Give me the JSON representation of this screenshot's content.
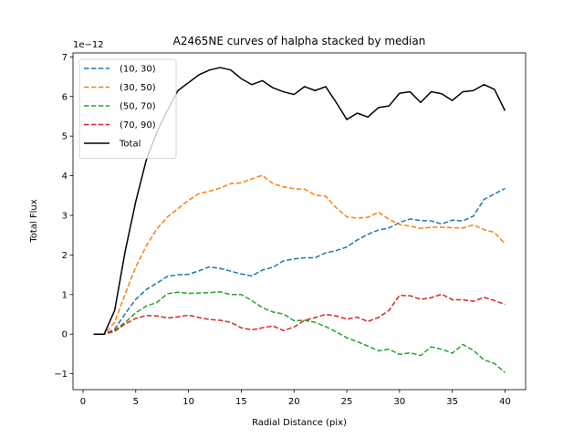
{
  "chart_data": {
    "type": "line",
    "title": "A2465NE curves of halpha stacked by median",
    "xlabel": "Radial Distance (pix)",
    "ylabel": "Total Flux",
    "offset_label": "1e−12",
    "xlim": [
      -0.95,
      41.95
    ],
    "ylim": [
      -1.4,
      7.1
    ],
    "xticks": [
      0,
      5,
      10,
      15,
      20,
      25,
      30,
      35,
      40
    ],
    "yticks": [
      -1,
      0,
      1,
      2,
      3,
      4,
      5,
      6,
      7
    ],
    "xtick_labels": [
      "0",
      "5",
      "10",
      "15",
      "20",
      "25",
      "30",
      "35",
      "40"
    ],
    "ytick_labels": [
      "−1",
      "0",
      "1",
      "2",
      "3",
      "4",
      "5",
      "6",
      "7"
    ],
    "legend_position": "top-left",
    "x": [
      1,
      2,
      3,
      4,
      5,
      6,
      7,
      8,
      9,
      10,
      11,
      12,
      13,
      14,
      15,
      16,
      17,
      18,
      19,
      20,
      21,
      22,
      23,
      24,
      25,
      26,
      27,
      28,
      29,
      30,
      31,
      32,
      33,
      34,
      35,
      36,
      37,
      38,
      39,
      40
    ],
    "series": [
      {
        "name": "(10, 30)",
        "color": "#1f77b4",
        "dash": true,
        "values": [
          0.0,
          0.0,
          0.13,
          0.52,
          0.88,
          1.13,
          1.29,
          1.46,
          1.5,
          1.51,
          1.6,
          1.7,
          1.66,
          1.59,
          1.52,
          1.47,
          1.62,
          1.69,
          1.85,
          1.9,
          1.93,
          1.93,
          2.05,
          2.11,
          2.2,
          2.38,
          2.52,
          2.63,
          2.68,
          2.82,
          2.91,
          2.87,
          2.86,
          2.78,
          2.88,
          2.86,
          2.98,
          3.4,
          3.54,
          3.68
        ]
      },
      {
        "name": "(30, 50)",
        "color": "#ff7f0e",
        "dash": true,
        "values": [
          0.0,
          0.0,
          0.3,
          1.02,
          1.7,
          2.23,
          2.66,
          2.96,
          3.17,
          3.38,
          3.55,
          3.61,
          3.69,
          3.8,
          3.82,
          3.92,
          4.01,
          3.8,
          3.72,
          3.67,
          3.66,
          3.51,
          3.48,
          3.19,
          2.96,
          2.93,
          2.95,
          3.08,
          2.9,
          2.77,
          2.73,
          2.67,
          2.7,
          2.7,
          2.69,
          2.68,
          2.76,
          2.64,
          2.57,
          2.28
        ]
      },
      {
        "name": "(50, 70)",
        "color": "#2ca02c",
        "dash": true,
        "values": [
          0.0,
          0.0,
          0.1,
          0.3,
          0.54,
          0.71,
          0.8,
          1.02,
          1.06,
          1.03,
          1.04,
          1.05,
          1.07,
          1.0,
          1.0,
          0.85,
          0.67,
          0.56,
          0.51,
          0.34,
          0.35,
          0.3,
          0.19,
          0.06,
          -0.09,
          -0.19,
          -0.3,
          -0.42,
          -0.38,
          -0.51,
          -0.47,
          -0.54,
          -0.32,
          -0.38,
          -0.48,
          -0.26,
          -0.41,
          -0.65,
          -0.74,
          -0.97
        ]
      },
      {
        "name": "(70, 90)",
        "color": "#d62728",
        "dash": true,
        "values": [
          0.0,
          0.0,
          0.07,
          0.26,
          0.4,
          0.47,
          0.46,
          0.41,
          0.44,
          0.48,
          0.42,
          0.37,
          0.35,
          0.3,
          0.16,
          0.11,
          0.16,
          0.21,
          0.09,
          0.18,
          0.35,
          0.42,
          0.5,
          0.46,
          0.38,
          0.43,
          0.32,
          0.42,
          0.6,
          0.98,
          0.97,
          0.88,
          0.92,
          1.01,
          0.87,
          0.87,
          0.83,
          0.93,
          0.85,
          0.75
        ]
      },
      {
        "name": "Total",
        "color": "#000000",
        "dash": false,
        "values": [
          0.0,
          0.0,
          0.6,
          2.1,
          3.35,
          4.4,
          5.1,
          5.65,
          6.15,
          6.35,
          6.55,
          6.67,
          6.73,
          6.67,
          6.45,
          6.3,
          6.4,
          6.22,
          6.12,
          6.05,
          6.25,
          6.15,
          6.25,
          5.85,
          5.42,
          5.58,
          5.48,
          5.72,
          5.76,
          6.08,
          6.12,
          5.85,
          6.12,
          6.07,
          5.9,
          6.12,
          6.15,
          6.3,
          6.18,
          5.64
        ]
      }
    ]
  }
}
